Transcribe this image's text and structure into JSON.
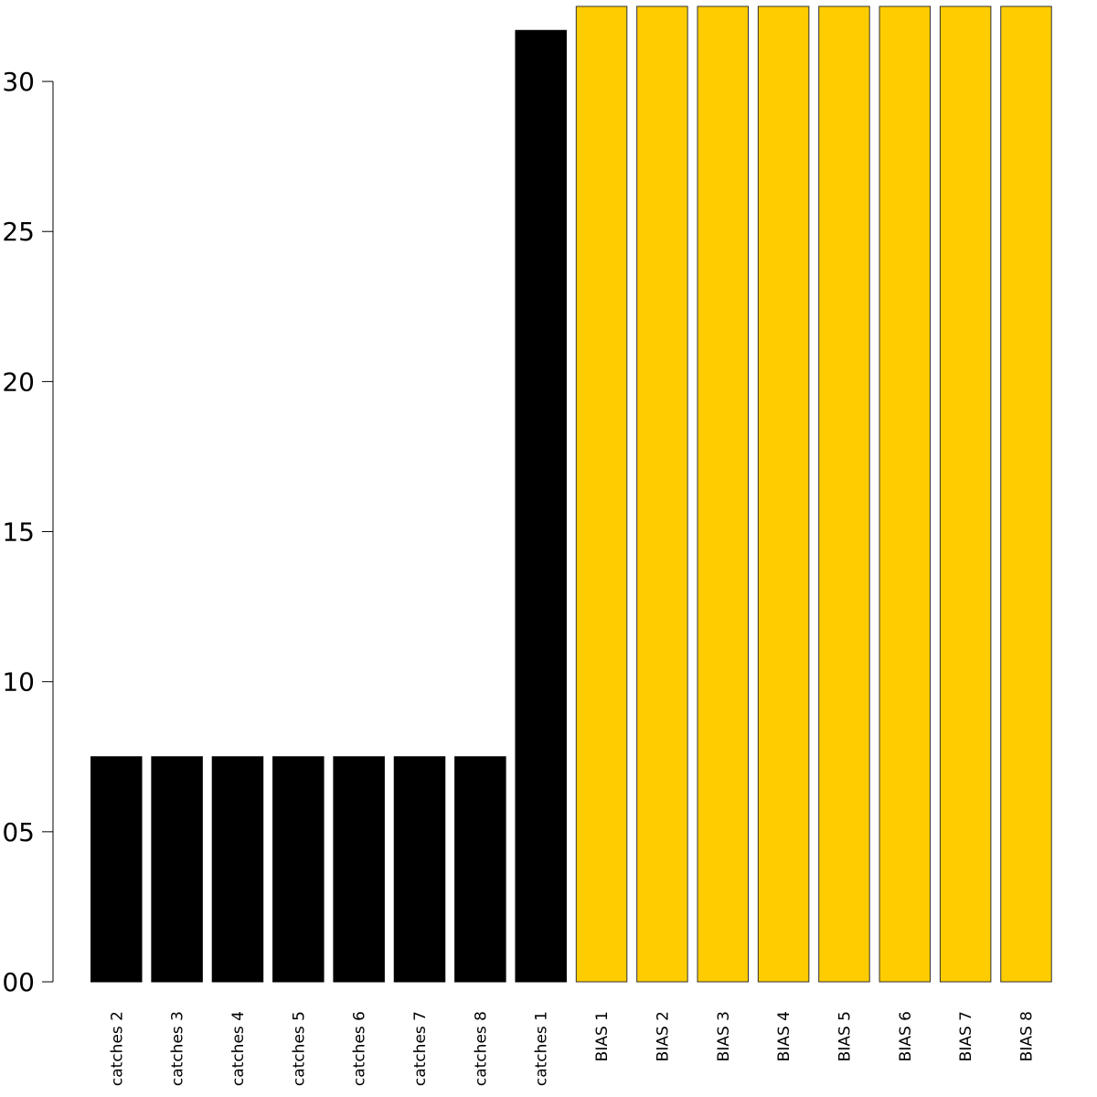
{
  "chart_data": {
    "type": "bar",
    "categories": [
      "catches 2",
      "catches 3",
      "catches 4",
      "catches 5",
      "catches 6",
      "catches 7",
      "catches 8",
      "catches 1",
      "1",
      "2",
      "3",
      "4",
      "5",
      "6",
      "7",
      "8"
    ],
    "category_prefixes": [
      "",
      "",
      "",
      "",
      "",
      "",
      "",
      "",
      "BIAS",
      "BIAS",
      "BIAS",
      "BIAS",
      "BIAS",
      "BIAS",
      "BIAS",
      "BIAS"
    ],
    "values": [
      0.075,
      0.075,
      0.075,
      0.075,
      0.075,
      0.075,
      0.075,
      0.317,
      0.325,
      0.325,
      0.325,
      0.325,
      0.325,
      0.325,
      0.325,
      0.325
    ],
    "bar_colors": [
      "#000000",
      "#000000",
      "#000000",
      "#000000",
      "#000000",
      "#000000",
      "#000000",
      "#000000",
      "#FFCC00",
      "#FFCC00",
      "#FFCC00",
      "#FFCC00",
      "#FFCC00",
      "#FFCC00",
      "#FFCC00",
      "#FFCC00"
    ],
    "bar_stroke": "#333333",
    "yticks": [
      0.0,
      0.05,
      0.1,
      0.15,
      0.2,
      0.25,
      0.3
    ],
    "ytick_labels": [
      "00",
      "05",
      "10",
      "15",
      "20",
      "25",
      "30"
    ],
    "ylim": [
      0,
      0.325
    ],
    "title": "",
    "xlabel": "",
    "ylabel": "",
    "grid": false,
    "legend": "none"
  }
}
